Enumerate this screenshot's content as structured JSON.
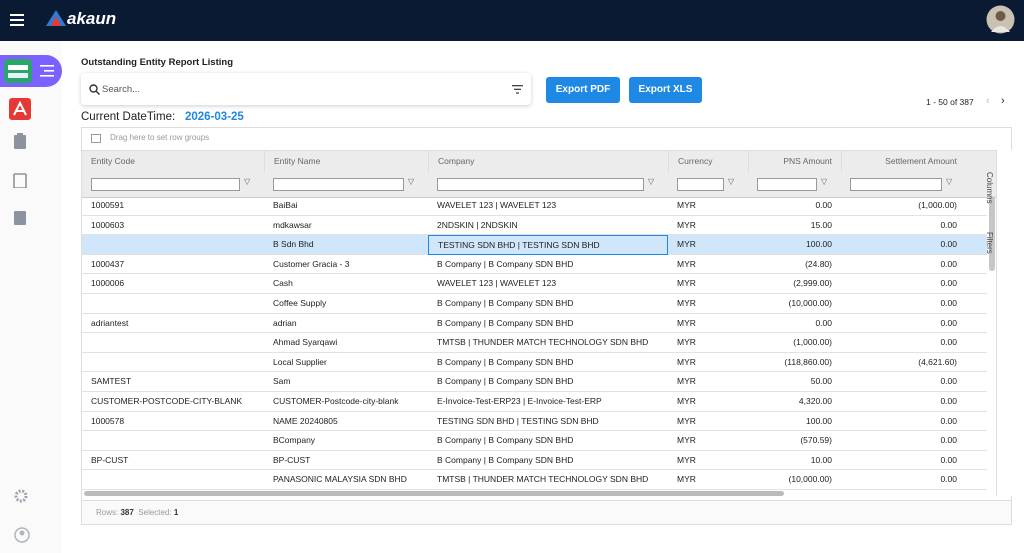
{
  "app": {
    "logo": "akaun"
  },
  "page": {
    "title": "Outstanding Entity Report Listing"
  },
  "toolbar": {
    "search_placeholder": "Search...",
    "export_pdf": "Export PDF",
    "export_xls": "Export XLS",
    "pagination": "1 - 50 of 387"
  },
  "datetime": {
    "label": "Current DateTime:",
    "value": "2026-03-25"
  },
  "table": {
    "group_hint": "Drag here to set row groups",
    "columns": [
      "Entity Code",
      "Entity Name",
      "Company",
      "Currency",
      "PNS Amount",
      "Settlement Amount"
    ],
    "side_tabs": [
      "Columns",
      "Filters"
    ],
    "rows": [
      [
        "1000591",
        "BaiBai",
        "WAVELET 123 | WAVELET 123",
        "MYR",
        "0.00",
        "(1,000.00)"
      ],
      [
        "1000603",
        "mdkawsar",
        "2NDSKIN | 2NDSKIN",
        "MYR",
        "15.00",
        "0.00"
      ],
      [
        null,
        "B Sdn Bhd",
        "TESTING SDN BHD | TESTING SDN BHD",
        "MYR",
        "100.00",
        "0.00"
      ],
      [
        "1000437",
        "Customer Gracia - 3",
        "B Company | B Company SDN BHD",
        "MYR",
        "(24.80)",
        "0.00"
      ],
      [
        "1000006",
        "Cash",
        "WAVELET 123 | WAVELET 123",
        "MYR",
        "(2,999.00)",
        "0.00"
      ],
      [
        null,
        "Coffee Supply",
        "B Company | B Company SDN BHD",
        "MYR",
        "(10,000.00)",
        "0.00"
      ],
      [
        "adriantest",
        "adrian",
        "B Company | B Company SDN BHD",
        "MYR",
        "0.00",
        "0.00"
      ],
      [
        null,
        "Ahmad Syarqawi",
        "TMTSB | THUNDER MATCH TECHNOLOGY SDN BHD",
        "MYR",
        "(1,000.00)",
        "0.00"
      ],
      [
        null,
        "Local Supplier",
        "B Company | B Company SDN BHD",
        "MYR",
        "(118,860.00)",
        "(4,621.60)"
      ],
      [
        "SAMTEST",
        "Sam",
        "B Company | B Company SDN BHD",
        "MYR",
        "50.00",
        "0.00"
      ],
      [
        "CUSTOMER-POSTCODE-CITY-BLANK",
        "CUSTOMER-Postcode-city-blank",
        "E-Invoice-Test-ERP23 | E-Invoice-Test-ERP",
        "MYR",
        "4,320.00",
        "0.00"
      ],
      [
        "1000578",
        "NAME 20240805",
        "TESTING SDN BHD | TESTING SDN BHD",
        "MYR",
        "100.00",
        "0.00"
      ],
      [
        null,
        "BCompany",
        "B Company | B Company SDN BHD",
        "MYR",
        "(570.59)",
        "0.00"
      ],
      [
        "BP-CUST",
        "BP-CUST",
        "B Company | B Company SDN BHD",
        "MYR",
        "10.00",
        "0.00"
      ],
      [
        null,
        "PANASONIC MALAYSIA SDN BHD",
        "TMTSB | THUNDER MATCH TECHNOLOGY SDN BHD",
        "MYR",
        "(10,000.00)",
        "0.00"
      ]
    ]
  },
  "footer": {
    "rows_label": "Rows:",
    "rows": 387,
    "selected_label": "Selected:",
    "selected": 1
  }
}
